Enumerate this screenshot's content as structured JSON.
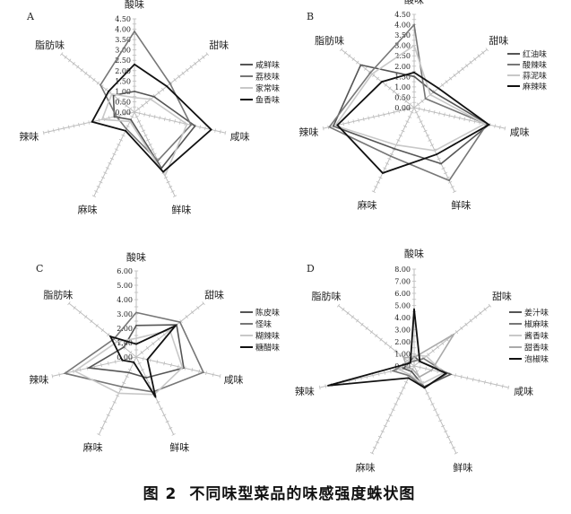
{
  "caption": {
    "figure_no": "图 2",
    "text": "不同味型菜品的味感强度蛛状图"
  },
  "chart_data": [
    {
      "type": "radar",
      "panel_label": "A",
      "axes": [
        "酸味",
        "甜味",
        "咸味",
        "鲜味",
        "麻味",
        "辣味",
        "脂肪味"
      ],
      "ticks": [
        "0.00",
        "0.50",
        "1.00",
        "1.50",
        "2.00",
        "2.50",
        "3.00",
        "3.50",
        "4.00",
        "4.50"
      ],
      "rmax": 4.5,
      "legend": "right",
      "series": [
        {
          "name": "咸鲜味",
          "color": "#555555",
          "values": [
            1.0,
            1.2,
            3.0,
            3.0,
            0.4,
            1.0,
            1.3
          ]
        },
        {
          "name": "荔枝味",
          "color": "#777777",
          "values": [
            3.9,
            2.2,
            2.8,
            2.6,
            0.9,
            0.9,
            2.1
          ]
        },
        {
          "name": "家常味",
          "color": "#c8c8c8",
          "values": [
            0.7,
            1.0,
            2.6,
            3.4,
            0.5,
            1.6,
            1.4
          ]
        },
        {
          "name": "鱼香味",
          "color": "#111111",
          "values": [
            2.3,
            2.0,
            3.8,
            3.2,
            1.0,
            2.1,
            1.6
          ]
        }
      ]
    },
    {
      "type": "radar",
      "panel_label": "B",
      "axes": [
        "酸味",
        "甜味",
        "咸味",
        "鲜味",
        "麻味",
        "辣味",
        "脂肪味"
      ],
      "ticks": [
        "0.00",
        "0.50",
        "1.00",
        "1.50",
        "2.00",
        "2.50",
        "3.00",
        "3.50",
        "4.00",
        "4.50"
      ],
      "rmax": 4.5,
      "legend": "right",
      "series": [
        {
          "name": "红油味",
          "color": "#555555",
          "values": [
            1.5,
            1.2,
            3.7,
            3.0,
            2.2,
            4.0,
            3.3
          ]
        },
        {
          "name": "酸辣味",
          "color": "#777777",
          "values": [
            4.0,
            0.7,
            3.6,
            3.9,
            2.6,
            4.2,
            2.7
          ]
        },
        {
          "name": "蒜泥味",
          "color": "#c8c8c8",
          "values": [
            3.0,
            1.0,
            3.5,
            2.3,
            2.0,
            3.9,
            2.6
          ]
        },
        {
          "name": "麻辣味",
          "color": "#111111",
          "values": [
            1.7,
            1.5,
            3.7,
            2.5,
            3.5,
            3.8,
            2.0
          ]
        }
      ]
    },
    {
      "type": "radar",
      "panel_label": "C",
      "axes": [
        "酸味",
        "甜味",
        "咸味",
        "鲜味",
        "麻味",
        "辣味",
        "脂肪味"
      ],
      "ticks": [
        "0.00",
        "1.00",
        "2.00",
        "3.00",
        "4.00",
        "5.00",
        "6.00"
      ],
      "rmax": 6,
      "legend": "right",
      "series": [
        {
          "name": "陈皮味",
          "color": "#555555",
          "values": [
            2.2,
            3.6,
            3.4,
            1.6,
            1.2,
            3.4,
            1.1
          ]
        },
        {
          "name": "怪味",
          "color": "#777777",
          "values": [
            3.1,
            3.9,
            4.8,
            2.7,
            2.3,
            5.1,
            2.0
          ]
        },
        {
          "name": "糊辣味",
          "color": "#c8c8c8",
          "values": [
            1.3,
            3.0,
            3.3,
            2.9,
            2.8,
            4.4,
            1.7
          ]
        },
        {
          "name": "糖醋味",
          "color": "#111111",
          "values": [
            0.9,
            3.5,
            0.8,
            3.1,
            0.4,
            1.0,
            2.3
          ]
        }
      ]
    },
    {
      "type": "radar",
      "panel_label": "D",
      "axes": [
        "酸味",
        "甜味",
        "咸味",
        "鲜味",
        "麻味",
        "辣味",
        "脂肪味"
      ],
      "ticks": [
        "0.00",
        "1.00",
        "2.00",
        "3.00",
        "4.00",
        "5.00",
        "6.00",
        "7.00",
        "8.00"
      ],
      "rmax": 8,
      "legend": "right",
      "series": [
        {
          "name": "姜汁味",
          "color": "#555555",
          "values": [
            0.8,
            0.6,
            3.1,
            1.9,
            0.5,
            0.9,
            0.5
          ]
        },
        {
          "name": "椒麻味",
          "color": "#777777",
          "values": [
            0.4,
            1.0,
            2.8,
            2.0,
            0.9,
            1.8,
            0.5
          ]
        },
        {
          "name": "酱香味",
          "color": "#c8c8c8",
          "values": [
            0.9,
            1.3,
            2.5,
            1.6,
            0.8,
            1.3,
            0.7
          ]
        },
        {
          "name": "甜香味",
          "color": "#aaaaaa",
          "values": [
            0.7,
            4.2,
            1.5,
            1.0,
            0.3,
            0.6,
            1.1
          ]
        },
        {
          "name": "泡椒味",
          "color": "#111111",
          "values": [
            4.7,
            0.6,
            2.7,
            2.0,
            1.1,
            7.3,
            0.4
          ]
        }
      ]
    }
  ]
}
